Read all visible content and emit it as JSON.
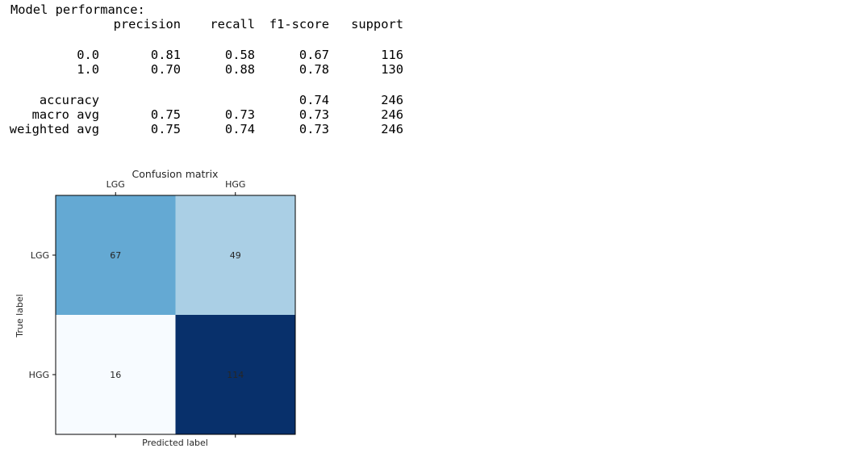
{
  "report": {
    "heading": "Model performance:",
    "columns": [
      "precision",
      "recall",
      "f1-score",
      "support"
    ],
    "rows": [
      {
        "label": "0.0",
        "values": [
          "0.81",
          "0.58",
          "0.67",
          "116"
        ]
      },
      {
        "label": "1.0",
        "values": [
          "0.70",
          "0.88",
          "0.78",
          "130"
        ]
      },
      {
        "label": "accuracy",
        "values": [
          "",
          "",
          "0.74",
          "246"
        ]
      },
      {
        "label": "macro avg",
        "values": [
          "0.75",
          "0.73",
          "0.73",
          "246"
        ]
      },
      {
        "label": "weighted avg",
        "values": [
          "0.75",
          "0.74",
          "0.73",
          "246"
        ]
      }
    ]
  },
  "chart_data": {
    "type": "heatmap",
    "title": "Confusion matrix",
    "xlabel": "Predicted label",
    "ylabel": "True label",
    "x_categories": [
      "LGG",
      "HGG"
    ],
    "y_categories": [
      "LGG",
      "HGG"
    ],
    "values": [
      [
        67,
        49
      ],
      [
        16,
        114
      ]
    ],
    "colormap": "Blues",
    "grid": false,
    "legend": "none",
    "colors": {
      "low": "#f7fbff",
      "high": "#08306b"
    }
  }
}
